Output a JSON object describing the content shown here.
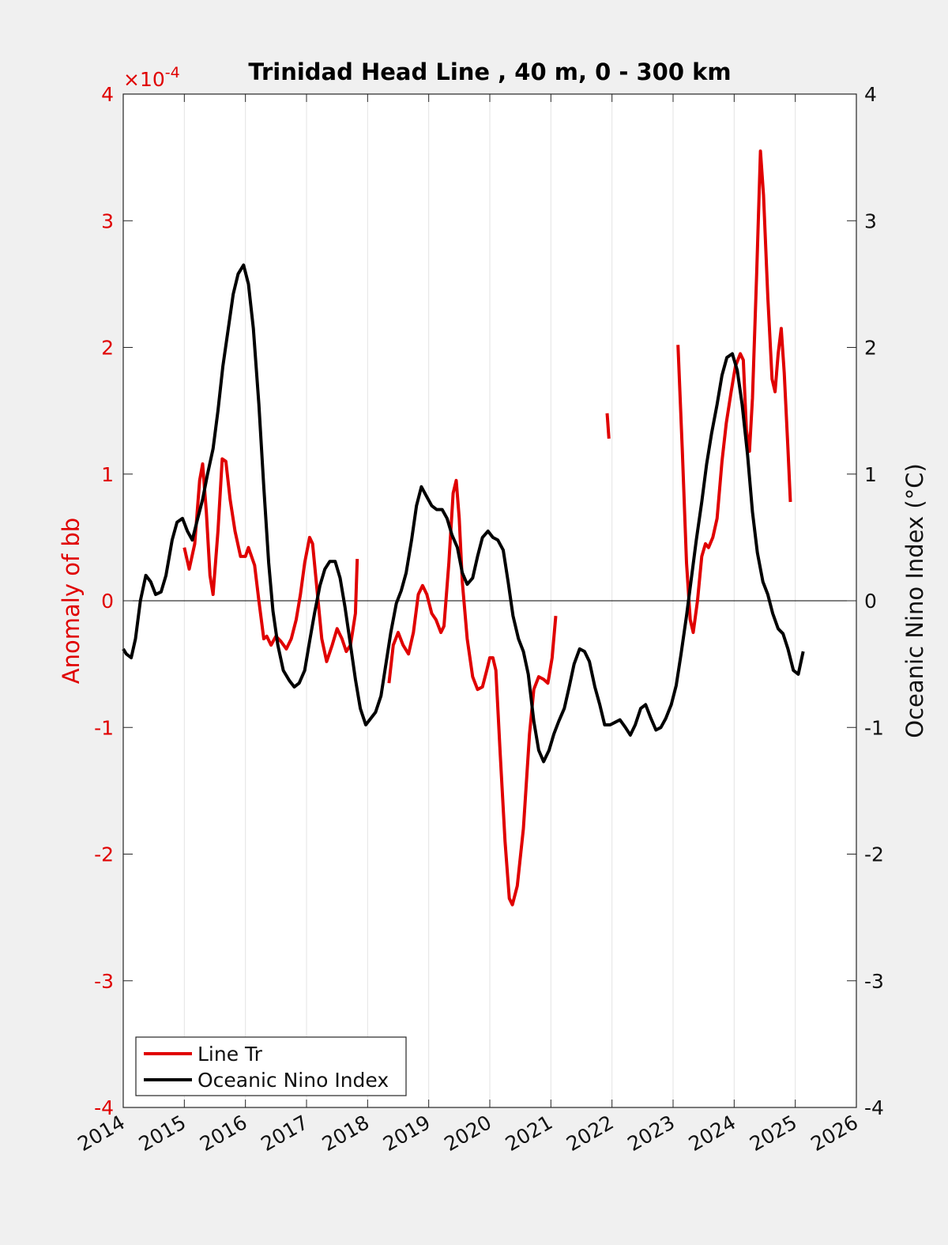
{
  "chart_data": {
    "type": "line",
    "title": "Trinidad Head Line , 40 m, 0 - 300 km",
    "xlabel": "",
    "x_ticks": [
      "2014",
      "2015",
      "2016",
      "2017",
      "2018",
      "2019",
      "2020",
      "2021",
      "2022",
      "2023",
      "2024",
      "2025",
      "2026"
    ],
    "xlim": [
      2014,
      2026
    ],
    "ylabel_left": "Anomaly of bb",
    "ylabel_right": "Oceanic Nino Index (°C)",
    "ylim_left": [
      -4,
      4
    ],
    "ylim_right": [
      -4,
      4
    ],
    "left_ticks": [
      "-4",
      "-3",
      "-2",
      "-1",
      "0",
      "1",
      "2",
      "3",
      "4"
    ],
    "right_ticks": [
      "-4",
      "-3",
      "-2",
      "-1",
      "0",
      "1",
      "2",
      "3",
      "4"
    ],
    "left_exponent": "×10",
    "left_exponent_power": "-4",
    "grid": "vertical",
    "zero_line": true,
    "legend_position": "bottom-left",
    "colors": {
      "line_tr": "#e00000",
      "oni": "#000000",
      "left_axis": "#e00000"
    },
    "series": [
      {
        "name": "Line Tr",
        "axis": "left",
        "segments": [
          [
            [
              2015.0,
              0.42
            ],
            [
              2015.08,
              0.25
            ],
            [
              2015.17,
              0.45
            ],
            [
              2015.25,
              0.95
            ],
            [
              2015.3,
              1.08
            ],
            [
              2015.36,
              0.7
            ],
            [
              2015.42,
              0.2
            ],
            [
              2015.47,
              0.05
            ],
            [
              2015.55,
              0.55
            ],
            [
              2015.62,
              1.12
            ],
            [
              2015.68,
              1.1
            ],
            [
              2015.75,
              0.8
            ],
            [
              2015.83,
              0.55
            ],
            [
              2015.92,
              0.35
            ],
            [
              2016.0,
              0.35
            ],
            [
              2016.05,
              0.42
            ],
            [
              2016.15,
              0.28
            ],
            [
              2016.22,
              0.0
            ],
            [
              2016.3,
              -0.3
            ],
            [
              2016.35,
              -0.28
            ],
            [
              2016.42,
              -0.35
            ],
            [
              2016.5,
              -0.28
            ],
            [
              2016.58,
              -0.32
            ],
            [
              2016.67,
              -0.38
            ],
            [
              2016.75,
              -0.3
            ],
            [
              2016.83,
              -0.15
            ],
            [
              2016.9,
              0.05
            ],
            [
              2016.97,
              0.3
            ],
            [
              2017.05,
              0.5
            ],
            [
              2017.1,
              0.45
            ],
            [
              2017.17,
              0.1
            ],
            [
              2017.25,
              -0.3
            ],
            [
              2017.33,
              -0.48
            ],
            [
              2017.42,
              -0.35
            ],
            [
              2017.5,
              -0.22
            ],
            [
              2017.58,
              -0.3
            ],
            [
              2017.65,
              -0.4
            ],
            [
              2017.72,
              -0.35
            ],
            [
              2017.8,
              -0.1
            ],
            [
              2017.83,
              0.33
            ]
          ],
          [
            [
              2018.35,
              -0.65
            ],
            [
              2018.42,
              -0.35
            ],
            [
              2018.5,
              -0.25
            ],
            [
              2018.58,
              -0.35
            ],
            [
              2018.67,
              -0.42
            ],
            [
              2018.75,
              -0.25
            ],
            [
              2018.83,
              0.05
            ],
            [
              2018.9,
              0.12
            ],
            [
              2018.97,
              0.05
            ],
            [
              2019.05,
              -0.1
            ],
            [
              2019.12,
              -0.15
            ],
            [
              2019.2,
              -0.25
            ],
            [
              2019.25,
              -0.2
            ],
            [
              2019.33,
              0.3
            ],
            [
              2019.4,
              0.85
            ],
            [
              2019.45,
              0.95
            ],
            [
              2019.5,
              0.65
            ],
            [
              2019.55,
              0.15
            ],
            [
              2019.63,
              -0.3
            ],
            [
              2019.72,
              -0.6
            ],
            [
              2019.8,
              -0.7
            ],
            [
              2019.88,
              -0.68
            ],
            [
              2019.95,
              -0.55
            ],
            [
              2020.0,
              -0.45
            ],
            [
              2020.05,
              -0.45
            ],
            [
              2020.1,
              -0.55
            ],
            [
              2020.17,
              -1.2
            ],
            [
              2020.25,
              -1.9
            ],
            [
              2020.32,
              -2.35
            ],
            [
              2020.37,
              -2.4
            ],
            [
              2020.45,
              -2.25
            ],
            [
              2020.55,
              -1.8
            ],
            [
              2020.65,
              -1.05
            ],
            [
              2020.72,
              -0.7
            ],
            [
              2020.8,
              -0.6
            ],
            [
              2020.88,
              -0.62
            ],
            [
              2020.95,
              -0.65
            ],
            [
              2021.02,
              -0.45
            ],
            [
              2021.08,
              -0.12
            ]
          ],
          [
            [
              2021.92,
              1.48
            ],
            [
              2021.95,
              1.28
            ]
          ],
          [
            [
              2023.08,
              2.02
            ],
            [
              2023.15,
              1.2
            ],
            [
              2023.22,
              0.3
            ],
            [
              2023.28,
              -0.15
            ],
            [
              2023.33,
              -0.25
            ],
            [
              2023.4,
              0.0
            ],
            [
              2023.47,
              0.35
            ],
            [
              2023.53,
              0.45
            ],
            [
              2023.58,
              0.42
            ],
            [
              2023.65,
              0.5
            ],
            [
              2023.72,
              0.65
            ],
            [
              2023.8,
              1.1
            ],
            [
              2023.87,
              1.4
            ],
            [
              2023.95,
              1.65
            ],
            [
              2024.02,
              1.85
            ],
            [
              2024.1,
              1.95
            ],
            [
              2024.15,
              1.9
            ],
            [
              2024.2,
              1.35
            ],
            [
              2024.25,
              1.18
            ],
            [
              2024.3,
              1.6
            ],
            [
              2024.37,
              2.6
            ],
            [
              2024.43,
              3.55
            ],
            [
              2024.48,
              3.2
            ],
            [
              2024.55,
              2.4
            ],
            [
              2024.62,
              1.75
            ],
            [
              2024.67,
              1.65
            ],
            [
              2024.72,
              1.95
            ],
            [
              2024.77,
              2.15
            ],
            [
              2024.82,
              1.8
            ],
            [
              2024.88,
              1.2
            ],
            [
              2024.92,
              0.78
            ]
          ]
        ]
      },
      {
        "name": "Oceanic Nino Index",
        "axis": "right",
        "segments": [
          [
            [
              2014.0,
              -0.38
            ],
            [
              2014.05,
              -0.42
            ],
            [
              2014.13,
              -0.45
            ],
            [
              2014.2,
              -0.3
            ],
            [
              2014.28,
              0.0
            ],
            [
              2014.37,
              0.2
            ],
            [
              2014.45,
              0.15
            ],
            [
              2014.53,
              0.05
            ],
            [
              2014.62,
              0.07
            ],
            [
              2014.7,
              0.2
            ],
            [
              2014.8,
              0.48
            ],
            [
              2014.88,
              0.62
            ],
            [
              2014.97,
              0.65
            ],
            [
              2015.05,
              0.55
            ],
            [
              2015.13,
              0.48
            ],
            [
              2015.22,
              0.65
            ],
            [
              2015.3,
              0.8
            ],
            [
              2015.38,
              1.0
            ],
            [
              2015.47,
              1.2
            ],
            [
              2015.55,
              1.5
            ],
            [
              2015.63,
              1.85
            ],
            [
              2015.72,
              2.15
            ],
            [
              2015.8,
              2.42
            ],
            [
              2015.88,
              2.58
            ],
            [
              2015.97,
              2.65
            ],
            [
              2016.05,
              2.5
            ],
            [
              2016.13,
              2.15
            ],
            [
              2016.22,
              1.55
            ],
            [
              2016.3,
              0.9
            ],
            [
              2016.38,
              0.3
            ],
            [
              2016.45,
              -0.08
            ],
            [
              2016.53,
              -0.35
            ],
            [
              2016.62,
              -0.55
            ],
            [
              2016.72,
              -0.63
            ],
            [
              2016.8,
              -0.68
            ],
            [
              2016.88,
              -0.65
            ],
            [
              2016.97,
              -0.55
            ],
            [
              2017.05,
              -0.32
            ],
            [
              2017.13,
              -0.1
            ],
            [
              2017.22,
              0.12
            ],
            [
              2017.3,
              0.25
            ],
            [
              2017.38,
              0.31
            ],
            [
              2017.47,
              0.31
            ],
            [
              2017.55,
              0.18
            ],
            [
              2017.63,
              -0.05
            ],
            [
              2017.72,
              -0.35
            ],
            [
              2017.8,
              -0.62
            ],
            [
              2017.88,
              -0.85
            ],
            [
              2017.97,
              -0.98
            ],
            [
              2018.05,
              -0.93
            ],
            [
              2018.13,
              -0.88
            ],
            [
              2018.22,
              -0.75
            ],
            [
              2018.3,
              -0.5
            ],
            [
              2018.38,
              -0.25
            ],
            [
              2018.47,
              -0.02
            ],
            [
              2018.55,
              0.08
            ],
            [
              2018.63,
              0.22
            ],
            [
              2018.72,
              0.48
            ],
            [
              2018.8,
              0.75
            ],
            [
              2018.88,
              0.9
            ],
            [
              2018.97,
              0.82
            ],
            [
              2019.05,
              0.75
            ],
            [
              2019.13,
              0.72
            ],
            [
              2019.22,
              0.72
            ],
            [
              2019.3,
              0.65
            ],
            [
              2019.38,
              0.52
            ],
            [
              2019.47,
              0.42
            ],
            [
              2019.55,
              0.22
            ],
            [
              2019.63,
              0.13
            ],
            [
              2019.72,
              0.18
            ],
            [
              2019.8,
              0.35
            ],
            [
              2019.88,
              0.5
            ],
            [
              2019.97,
              0.55
            ],
            [
              2020.05,
              0.5
            ],
            [
              2020.13,
              0.48
            ],
            [
              2020.22,
              0.4
            ],
            [
              2020.3,
              0.15
            ],
            [
              2020.38,
              -0.12
            ],
            [
              2020.47,
              -0.3
            ],
            [
              2020.55,
              -0.4
            ],
            [
              2020.63,
              -0.58
            ],
            [
              2020.72,
              -0.95
            ],
            [
              2020.8,
              -1.18
            ],
            [
              2020.88,
              -1.27
            ],
            [
              2020.97,
              -1.18
            ],
            [
              2021.05,
              -1.05
            ],
            [
              2021.13,
              -0.95
            ],
            [
              2021.22,
              -0.85
            ],
            [
              2021.3,
              -0.68
            ],
            [
              2021.38,
              -0.5
            ],
            [
              2021.47,
              -0.38
            ],
            [
              2021.55,
              -0.4
            ],
            [
              2021.63,
              -0.48
            ],
            [
              2021.72,
              -0.68
            ],
            [
              2021.8,
              -0.82
            ],
            [
              2021.88,
              -0.98
            ],
            [
              2021.97,
              -0.98
            ],
            [
              2022.05,
              -0.96
            ],
            [
              2022.13,
              -0.94
            ],
            [
              2022.22,
              -1.0
            ],
            [
              2022.3,
              -1.06
            ],
            [
              2022.38,
              -0.98
            ],
            [
              2022.47,
              -0.85
            ],
            [
              2022.55,
              -0.82
            ],
            [
              2022.63,
              -0.92
            ],
            [
              2022.72,
              -1.02
            ],
            [
              2022.8,
              -1.0
            ],
            [
              2022.88,
              -0.93
            ],
            [
              2022.97,
              -0.82
            ],
            [
              2023.05,
              -0.67
            ],
            [
              2023.13,
              -0.42
            ],
            [
              2023.22,
              -0.12
            ],
            [
              2023.3,
              0.18
            ],
            [
              2023.38,
              0.48
            ],
            [
              2023.47,
              0.78
            ],
            [
              2023.55,
              1.08
            ],
            [
              2023.63,
              1.32
            ],
            [
              2023.72,
              1.55
            ],
            [
              2023.8,
              1.78
            ],
            [
              2023.88,
              1.92
            ],
            [
              2023.97,
              1.95
            ],
            [
              2024.05,
              1.82
            ],
            [
              2024.13,
              1.55
            ],
            [
              2024.22,
              1.15
            ],
            [
              2024.3,
              0.7
            ],
            [
              2024.38,
              0.38
            ],
            [
              2024.47,
              0.15
            ],
            [
              2024.55,
              0.05
            ],
            [
              2024.63,
              -0.1
            ],
            [
              2024.72,
              -0.22
            ],
            [
              2024.8,
              -0.26
            ],
            [
              2024.88,
              -0.38
            ],
            [
              2024.97,
              -0.55
            ],
            [
              2025.05,
              -0.58
            ],
            [
              2025.13,
              -0.4
            ]
          ]
        ]
      }
    ]
  }
}
